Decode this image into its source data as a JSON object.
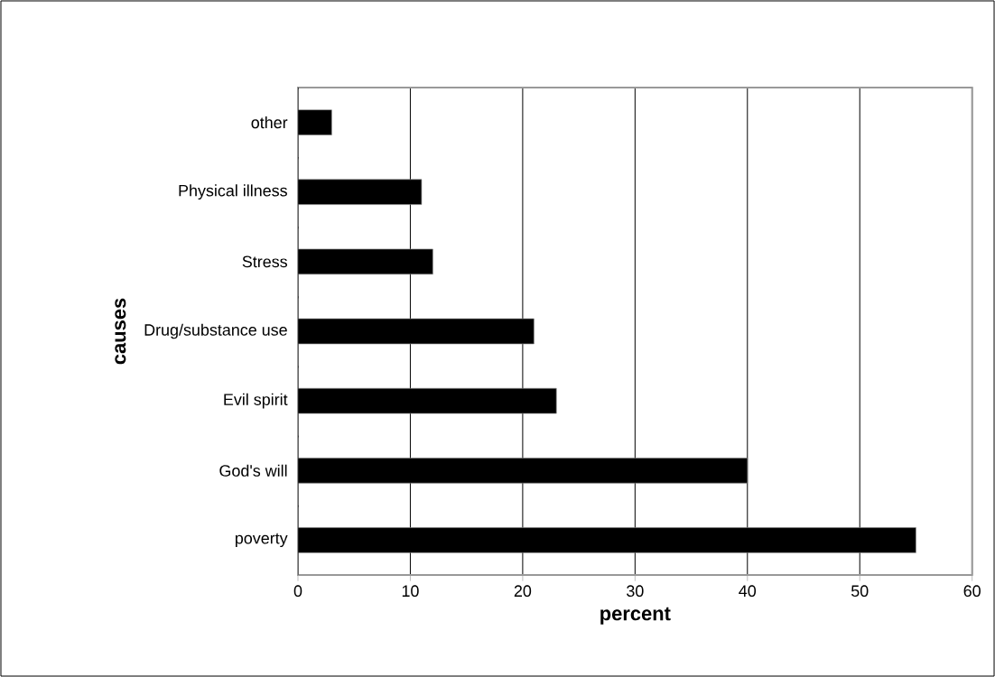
{
  "chart_data": {
    "type": "bar",
    "orientation": "horizontal",
    "categories": [
      "other",
      "Physical illness",
      "Stress",
      "Drug/substance use",
      "Evil spirit",
      "God's will",
      "poverty"
    ],
    "values": [
      3,
      11,
      12,
      21,
      23,
      40,
      55
    ],
    "color": "#000000",
    "xlabel": "percent",
    "ylabel": "causes",
    "xlim": [
      0,
      60
    ],
    "xticks": [
      0,
      10,
      20,
      30,
      40,
      50,
      60
    ],
    "grid": "x"
  }
}
